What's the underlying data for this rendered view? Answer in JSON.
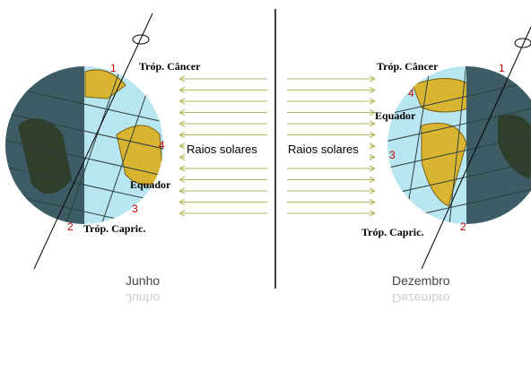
{
  "panels": [
    {
      "season": "Junho",
      "rays_label": "Raios solares",
      "labels": {
        "cancer": "Tróp. Câncer",
        "equator": "Equador",
        "capricorn": "Tróp. Capric."
      },
      "markers": [
        1,
        2,
        3,
        4
      ]
    },
    {
      "season": "Dezembro",
      "rays_label": "Raios solares",
      "labels": {
        "cancer": "Tróp. Câncer",
        "equator": "Equador",
        "capricorn": "Tróp. Capric."
      },
      "markers": [
        1,
        2,
        3,
        4
      ]
    }
  ]
}
